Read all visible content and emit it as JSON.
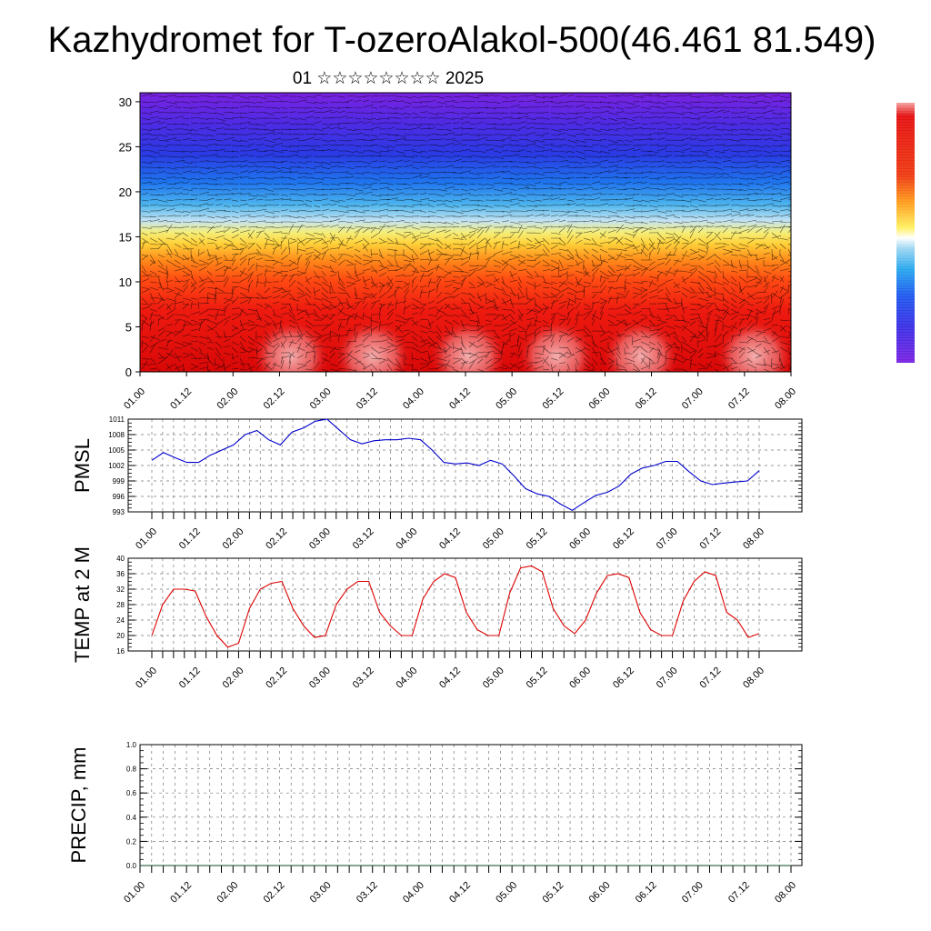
{
  "header": {
    "title": "Kazhydromet for T-ozeroAlakol-500(46.461 81.549)",
    "subtitle": "01 ☆☆☆☆☆☆☆☆ 2025"
  },
  "chart_data": [
    {
      "type": "heatmap",
      "panel": "vertical-section",
      "ylim": [
        0,
        30
      ],
      "yticks": [
        "0",
        "5",
        "10",
        "15",
        "20",
        "25",
        "30"
      ],
      "xticks": [
        "01.00",
        "01.12",
        "02.00",
        "02.12",
        "03.00",
        "03.12",
        "04.00",
        "04.12",
        "05.00",
        "05.12",
        "06.00",
        "06.12",
        "07.00",
        "07.12",
        "08.00"
      ],
      "description_colors": [
        "#7b1fe0",
        "#3f2ee0",
        "#1f5af0",
        "#2aa0f0",
        "#c8e6f5",
        "#ffe24d",
        "#ff9a1a",
        "#ff3c14",
        "#e01010"
      ],
      "wind_vectors": true
    },
    {
      "type": "line",
      "panel": "pmsl",
      "ylabel": "PMSL",
      "ylim": [
        993,
        1011
      ],
      "yticks": [
        "993",
        "996",
        "999",
        "1002",
        "1005",
        "1008",
        "1011"
      ],
      "xticks": [
        "01.00",
        "01.12",
        "02.00",
        "02.12",
        "03.00",
        "03.12",
        "04.00",
        "04.12",
        "05.00",
        "05.12",
        "06.00",
        "06.12",
        "07.00",
        "07.12",
        "08.00"
      ],
      "color": "#0000cc",
      "values": [
        1003.0,
        1004.5,
        1003.5,
        1002.6,
        1002.6,
        1004.0,
        1005.0,
        1006.0,
        1008.0,
        1008.8,
        1007.0,
        1006.0,
        1008.5,
        1009.3,
        1010.6,
        1011.0,
        1009.0,
        1007.0,
        1006.2,
        1006.8,
        1007.0,
        1007.0,
        1007.3,
        1007.0,
        1005.0,
        1002.6,
        1002.3,
        1002.5,
        1002.0,
        1003.0,
        1002.3,
        1000.0,
        997.5,
        996.5,
        996.0,
        994.5,
        993.3,
        994.8,
        996.2,
        996.8,
        998.0,
        1000.3,
        1001.5,
        1002.0,
        1002.8,
        1002.8,
        1000.8,
        999.0,
        998.3,
        998.6,
        998.8,
        999.0,
        1001.0
      ]
    },
    {
      "type": "line",
      "panel": "temp2m",
      "ylabel": "TEMP at 2 M",
      "ylim": [
        16,
        40
      ],
      "yticks": [
        "16",
        "20",
        "24",
        "28",
        "32",
        "36",
        "40"
      ],
      "xticks": [
        "01.00",
        "01.12",
        "02.00",
        "02.12",
        "03.00",
        "03.12",
        "04.00",
        "04.12",
        "05.00",
        "05.12",
        "06.00",
        "06.12",
        "07.00",
        "07.12",
        "08.00"
      ],
      "color": "#dd0000",
      "values": [
        20,
        28,
        32,
        32,
        31.5,
        25,
        20,
        17,
        18,
        27,
        32,
        33.5,
        34,
        27,
        22.5,
        19.5,
        20,
        28,
        32,
        34,
        34,
        26,
        22.5,
        20,
        20,
        29.5,
        34,
        36,
        35,
        26,
        21.5,
        20,
        20,
        31,
        37.5,
        38,
        36.5,
        27,
        22.5,
        20.5,
        24,
        31,
        35.5,
        36,
        35,
        26,
        21.5,
        20,
        20,
        29,
        34,
        36.5,
        35.5,
        26,
        24,
        19.5,
        20.5
      ]
    },
    {
      "type": "line",
      "panel": "precip",
      "ylabel": "PRECIP, mm",
      "ylim": [
        0,
        1
      ],
      "yticks": [
        "0.0",
        "0.2",
        "0.4",
        "0.6",
        "0.8",
        "1.0"
      ],
      "xticks": [
        "01.00",
        "01.12",
        "02.00",
        "02.12",
        "03.00",
        "03.12",
        "04.00",
        "04.12",
        "05.00",
        "05.12",
        "06.00",
        "06.12",
        "07.00",
        "07.12",
        "08.00"
      ],
      "color": "#0a4a2a",
      "values": [
        0,
        0,
        0,
        0,
        0,
        0,
        0,
        0,
        0,
        0,
        0,
        0,
        0,
        0,
        0
      ]
    }
  ]
}
